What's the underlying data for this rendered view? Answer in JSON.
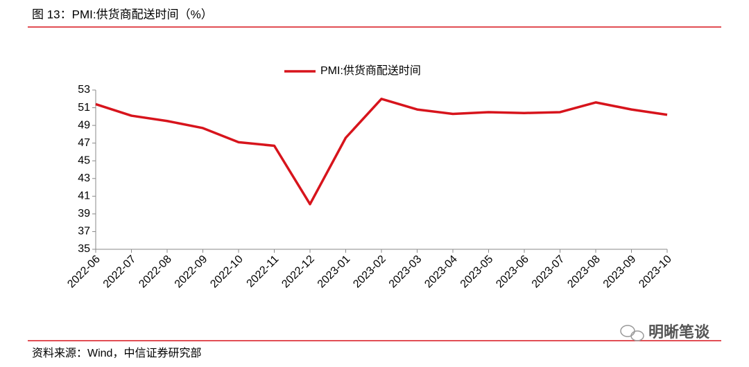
{
  "chart_data": {
    "type": "line",
    "title": "图 13：PMI:供货商配送时间（%）",
    "source": "资料来源：Wind，中信证券研究部",
    "watermark": "明晰笔谈",
    "categories": [
      "2022-06",
      "2022-07",
      "2022-08",
      "2022-09",
      "2022-10",
      "2022-11",
      "2022-12",
      "2023-01",
      "2023-02",
      "2023-03",
      "2023-04",
      "2023-05",
      "2023-06",
      "2023-07",
      "2023-08",
      "2023-09",
      "2023-10"
    ],
    "series": [
      {
        "name": "PMI:供货商配送时间",
        "color": "#d7141c",
        "values": [
          51.4,
          50.1,
          49.5,
          48.7,
          47.1,
          46.7,
          40.1,
          47.6,
          52.0,
          50.8,
          50.3,
          50.5,
          50.4,
          50.5,
          51.6,
          50.8,
          50.2
        ]
      }
    ],
    "ylim": [
      35,
      53
    ],
    "yticks": [
      35,
      37,
      39,
      41,
      43,
      45,
      47,
      49,
      51,
      53
    ],
    "legend": "top",
    "grid": false
  }
}
